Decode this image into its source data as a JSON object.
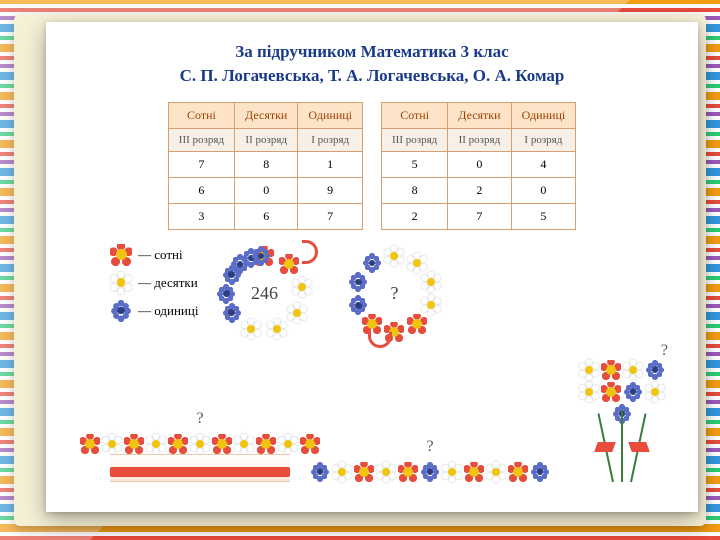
{
  "colors": {
    "title": "#1a3a8a",
    "table_header_bg": "#fde4c8",
    "table_header_text": "#a04000",
    "table_border": "#d8a070",
    "red_flower": "#e74c3c",
    "white_flower": "#ffffff",
    "blue_flower": "#5b6dc9",
    "flower_center": "#f1c40f",
    "ribbon": "#e74c3c",
    "stem": "#3a7d3a"
  },
  "title": {
    "line1": "За підручником Математика 3 клас",
    "line2": "С. П. Логачевська, Т. А. Логачевська, О. А. Комар"
  },
  "table_headers": [
    "Сотні",
    "Десятки",
    "Одиниці"
  ],
  "table_subheaders": [
    "III розряд",
    "II розряд",
    "I розряд"
  ],
  "table1_rows": [
    [
      "7",
      "8",
      "1"
    ],
    [
      "6",
      "0",
      "9"
    ],
    [
      "3",
      "6",
      "7"
    ]
  ],
  "table2_rows": [
    [
      "5",
      "0",
      "4"
    ],
    [
      "8",
      "2",
      "0"
    ],
    [
      "2",
      "7",
      "5"
    ]
  ],
  "legend": {
    "red": "— сотні",
    "white": "— десятки",
    "blue": "— одиниці"
  },
  "wreath1_label": "246",
  "wreath2_label": "?",
  "box_label": "?",
  "row_label": "?",
  "bouquet_label": "?",
  "wreath1_flowers": [
    {
      "type": "red",
      "angle": 0
    },
    {
      "type": "red",
      "angle": 40
    },
    {
      "type": "white",
      "angle": 80
    },
    {
      "type": "white",
      "angle": 120
    },
    {
      "type": "white",
      "angle": 160
    },
    {
      "type": "white",
      "angle": 200
    },
    {
      "type": "blue",
      "angle": 240
    },
    {
      "type": "blue",
      "angle": 270
    },
    {
      "type": "blue",
      "angle": 300
    },
    {
      "type": "blue",
      "angle": 320
    },
    {
      "type": "blue",
      "angle": 340
    },
    {
      "type": "blue",
      "angle": 355
    }
  ],
  "wreath2_flowers": [
    {
      "type": "white",
      "angle": 0
    },
    {
      "type": "white",
      "angle": 36
    },
    {
      "type": "white",
      "angle": 72
    },
    {
      "type": "white",
      "angle": 108
    },
    {
      "type": "red",
      "angle": 144
    },
    {
      "type": "red",
      "angle": 180
    },
    {
      "type": "red",
      "angle": 216
    },
    {
      "type": "blue",
      "angle": 252
    },
    {
      "type": "blue",
      "angle": 288
    },
    {
      "type": "blue",
      "angle": 324
    }
  ],
  "box_flowers": [
    "red",
    "white",
    "red",
    "white",
    "red",
    "white",
    "red",
    "white",
    "red",
    "white",
    "red"
  ],
  "row_flowers": [
    "blue",
    "white",
    "red",
    "white",
    "red",
    "blue",
    "white",
    "red",
    "white",
    "red",
    "blue"
  ],
  "bouquet_flowers": [
    "white",
    "red",
    "white",
    "blue",
    "white",
    "red",
    "blue",
    "white",
    "blue"
  ]
}
